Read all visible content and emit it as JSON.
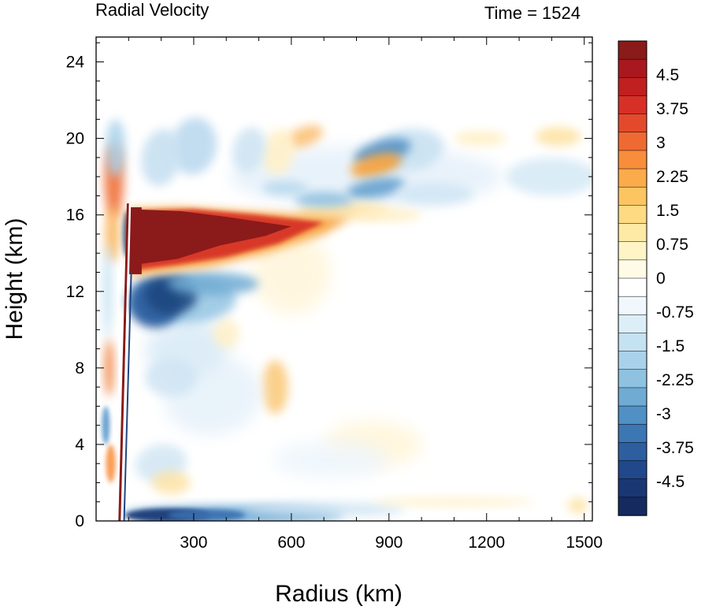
{
  "chart_data": {
    "type": "heatmap",
    "title": "Radial Velocity",
    "subtitle": "Time = 1524",
    "xlabel": "Radius (km)",
    "ylabel": "Height (km)",
    "xlim": [
      0,
      1525
    ],
    "ylim": [
      0,
      25.3
    ],
    "xticks": [
      "300",
      "600",
      "900",
      "1200",
      "1500"
    ],
    "xtick_values": [
      300,
      600,
      900,
      1200,
      1500
    ],
    "yticks": [
      "0",
      "4",
      "8",
      "12",
      "16",
      "20",
      "24"
    ],
    "ytick_values": [
      0,
      4,
      8,
      12,
      16,
      20,
      24
    ],
    "colorbar": {
      "min": -5.25,
      "max": 5.25,
      "step": 0.25,
      "label_values": [
        4.5,
        3.75,
        3,
        2.25,
        1.5,
        0.75,
        0,
        -0.75,
        -1.5,
        -2.25,
        -3,
        -3.75,
        -4.5
      ],
      "labels": [
        "4.5",
        "3.75",
        "3",
        "2.25",
        "1.5",
        "0.75",
        "0",
        "-0.75",
        "-1.5",
        "-2.25",
        "-3",
        "-3.75",
        "-4.5"
      ],
      "colors_top_to_bottom": [
        "#8b1a1a",
        "#a8181e",
        "#c0201f",
        "#d73027",
        "#e34a2c",
        "#ef6a32",
        "#f88d3b",
        "#fbab4a",
        "#fdc462",
        "#fedb82",
        "#feeaa4",
        "#fff4c6",
        "#fffbe6",
        "#ffffff",
        "#f0f8fd",
        "#dceef8",
        "#c5e2f2",
        "#a9d2ea",
        "#8ec2e0",
        "#6fabd3",
        "#5090c4",
        "#3c76b3",
        "#2c5ea0",
        "#20488b",
        "#1a3774",
        "#152a5f"
      ]
    },
    "features": [
      {
        "name": "outflow jet",
        "radius_km": [
          100,
          780
        ],
        "height_km": [
          13.5,
          16.3
        ],
        "value": 5.0
      },
      {
        "name": "inflow below outflow",
        "radius_km": [
          100,
          500
        ],
        "height_km": [
          10.5,
          13
        ],
        "value": -4.0
      },
      {
        "name": "boundary layer inflow",
        "radius_km": [
          80,
          1000
        ],
        "height_km": [
          0,
          1
        ],
        "value": -4.5
      },
      {
        "name": "eyewall",
        "radius_km": [
          70,
          105
        ],
        "height_km": [
          0,
          16.6
        ],
        "value": 0
      },
      {
        "name": "upper outflow bands",
        "radius_km": [
          500,
          1500
        ],
        "height_km": [
          16.5,
          21
        ],
        "value": 2.5
      },
      {
        "name": "upper inflow bands",
        "radius_km": [
          50,
          1500
        ],
        "height_km": [
          17,
          21
        ],
        "value": -2.5
      },
      {
        "name": "mid-level outflow",
        "radius_km": [
          540,
          640
        ],
        "height_km": [
          6,
          8.5
        ],
        "value": 1.5
      }
    ]
  }
}
